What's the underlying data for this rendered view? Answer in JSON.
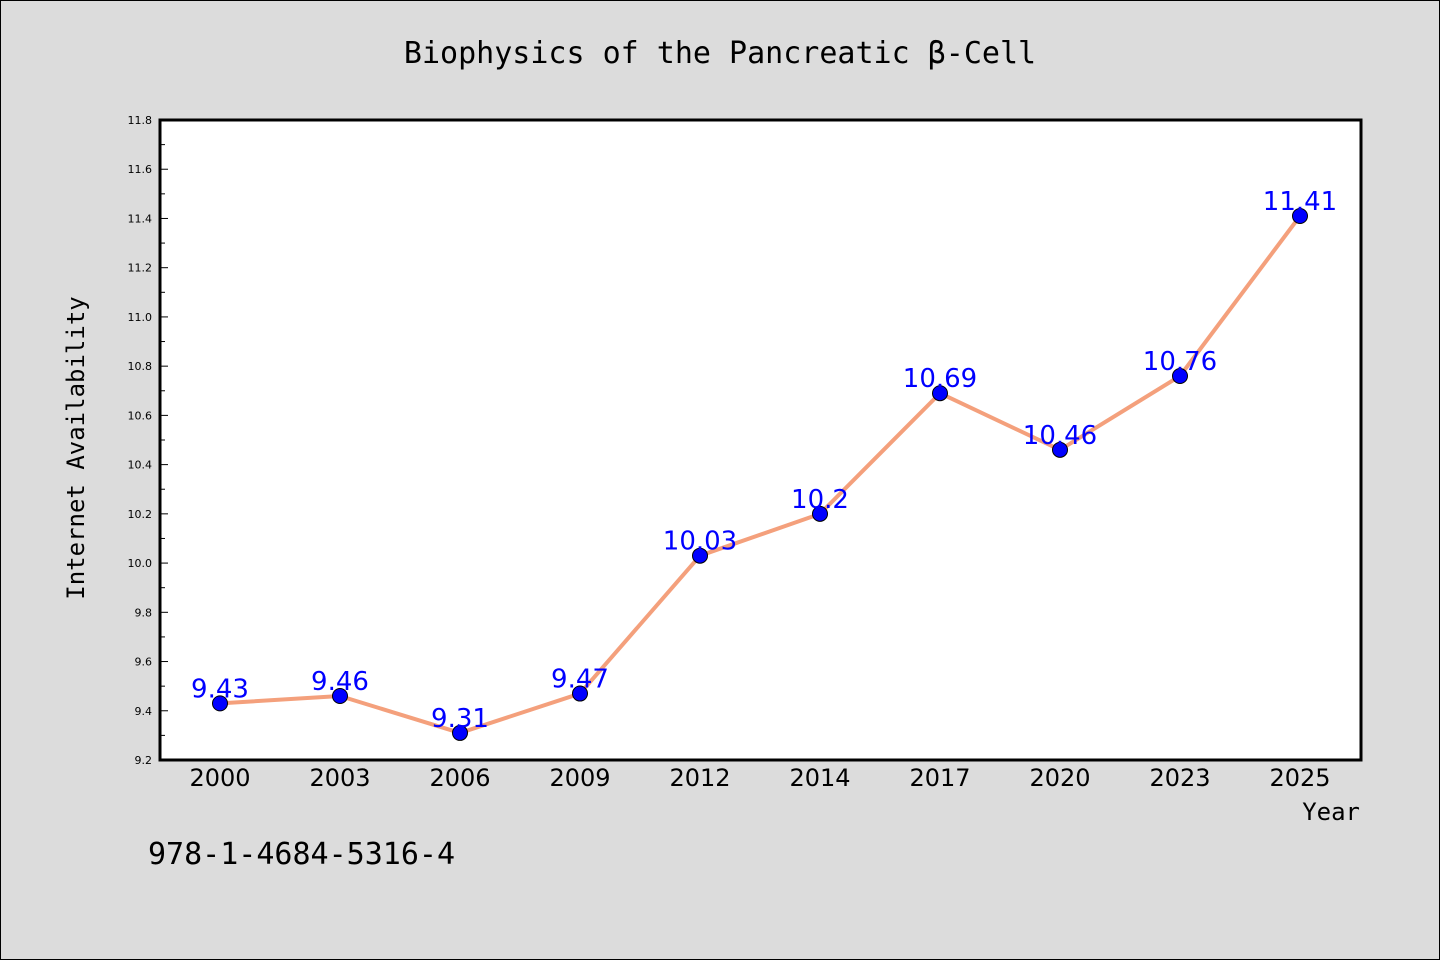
{
  "chart_data": {
    "type": "line",
    "title": "Biophysics of the Pancreatic β-Cell",
    "xlabel": "Year",
    "ylabel": "Internet Availability",
    "categories": [
      "2000",
      "2003",
      "2006",
      "2009",
      "2012",
      "2014",
      "2017",
      "2020",
      "2023",
      "2025"
    ],
    "series": [
      {
        "values": [
          9.43,
          9.46,
          9.31,
          9.47,
          10.03,
          10.2,
          10.69,
          10.46,
          10.76,
          11.41
        ],
        "data_labels": [
          "9.43",
          "9.46",
          "9.31",
          "9.47",
          "10.03",
          "10.2",
          "10.69",
          "10.46",
          "10.76",
          "11.41"
        ],
        "line_color": "#f4a07c",
        "marker_color": "#0000ff"
      }
    ],
    "ylim": [
      9.2,
      11.8
    ],
    "yticks": [
      "9.2",
      "9.4",
      "9.6",
      "9.8",
      "10.0",
      "10.2",
      "10.4",
      "10.6",
      "10.8",
      "11.0",
      "11.2",
      "11.4",
      "11.6",
      "11.8"
    ],
    "grid": false,
    "legend": "none"
  },
  "footer": {
    "isbn": "978-1-4684-5316-4"
  },
  "colors": {
    "background": "#dcdcdc",
    "plot_area": "#ffffff",
    "line": "#f4a07c",
    "marker": "#0000ff",
    "data_label": "#0000ff"
  }
}
